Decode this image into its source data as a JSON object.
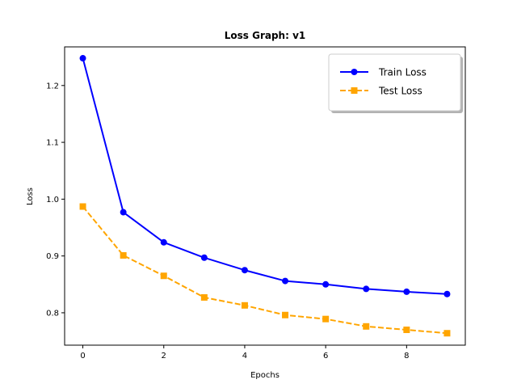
{
  "chart_data": {
    "type": "line",
    "title": "Loss Graph: v1",
    "xlabel": "Epochs",
    "ylabel": "Loss",
    "x": [
      0,
      1,
      2,
      3,
      4,
      5,
      6,
      7,
      8,
      9
    ],
    "xlim": [
      -0.45,
      9.45
    ],
    "ylim": [
      0.743,
      1.268
    ],
    "xticks": [
      0,
      2,
      4,
      6,
      8
    ],
    "yticks": [
      0.8,
      0.9,
      1.0,
      1.1,
      1.2
    ],
    "xtick_labels": [
      "0",
      "2",
      "4",
      "6",
      "8"
    ],
    "ytick_labels": [
      "0.8",
      "0.9",
      "1.0",
      "1.1",
      "1.2"
    ],
    "grid": false,
    "legend_position": "top-right",
    "series": [
      {
        "name": "Train Loss",
        "values": [
          1.248,
          0.977,
          0.924,
          0.897,
          0.875,
          0.856,
          0.85,
          0.842,
          0.837,
          0.833
        ],
        "color": "#0000ff",
        "marker": "circle",
        "line_style": "solid"
      },
      {
        "name": "Test Loss",
        "values": [
          0.987,
          0.901,
          0.865,
          0.827,
          0.813,
          0.796,
          0.789,
          0.776,
          0.77,
          0.764
        ],
        "color": "#ffa500",
        "marker": "square",
        "line_style": "dashed"
      }
    ]
  }
}
